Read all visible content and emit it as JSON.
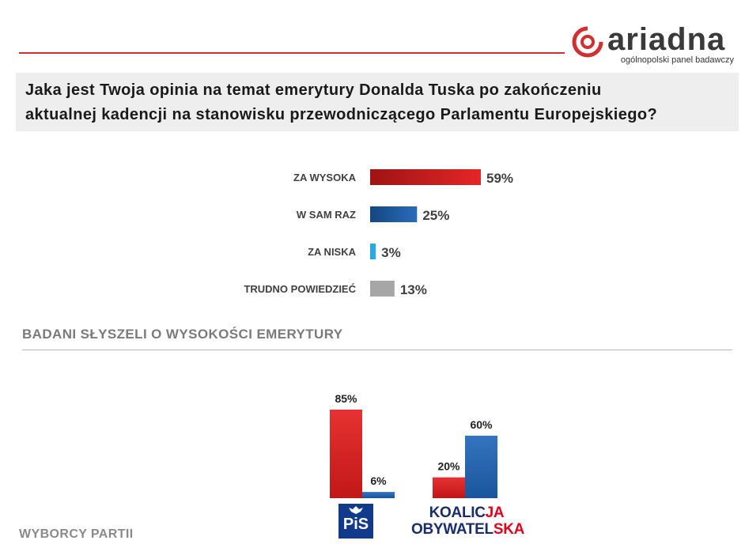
{
  "brand": {
    "name": "ariadna",
    "tagline": "ogólnopolski panel badawczy",
    "colors": {
      "accent": "#d03030",
      "text": "#3a3a3a"
    }
  },
  "question": {
    "line1": "Jaka jest Twoja opinia na temat emerytury Donalda Tuska po zakończeniu",
    "line2": "aktualnej kadencji na stanowisku przewodniczącego Parlamentu Europejskiego?"
  },
  "section_title": "BADANI SŁYSZELI O WYSOKOŚCI EMERYTURY",
  "footer_label": "WYBORCY PARTII",
  "parties": {
    "pis": "PiS",
    "ko_line1_a": "KOALIC",
    "ko_line1_b": "JA",
    "ko_line2_a": "OBYWATEL",
    "ko_line2_b": "SKA"
  },
  "chart_data": [
    {
      "type": "bar",
      "orientation": "horizontal",
      "title": "Jaka jest Twoja opinia na temat emerytury Donalda Tuska po zakończeniu aktualnej kadencji na stanowisku przewodniczącego Parlamentu Europejskiego?",
      "categories": [
        "ZA WYSOKA",
        "W SAM RAZ",
        "ZA NISKA",
        "TRUDNO POWIEDZIEĆ"
      ],
      "values": [
        59,
        25,
        3,
        13
      ],
      "labels": [
        "59%",
        "25%",
        "3%",
        "13%"
      ],
      "colors": [
        "#e31b1b",
        "#1e64b8",
        "#29a9e1",
        "#a6a6a6"
      ],
      "unit": "%"
    },
    {
      "type": "bar",
      "orientation": "vertical",
      "title": "BADANI SŁYSZELI O WYSOKOŚCI EMERYTURY",
      "xlabel": "WYBORCY PARTII",
      "categories": [
        "PiS",
        "KOALICJA OBYWATELSKA"
      ],
      "series": [
        {
          "name": "ZA WYSOKA",
          "color": "#e31b1b",
          "values": [
            85,
            20
          ],
          "labels": [
            "85%",
            "20%"
          ]
        },
        {
          "name": "W SAM RAZ",
          "color": "#1e64b8",
          "values": [
            6,
            60
          ],
          "labels": [
            "6%",
            "60%"
          ]
        }
      ],
      "unit": "%"
    }
  ]
}
